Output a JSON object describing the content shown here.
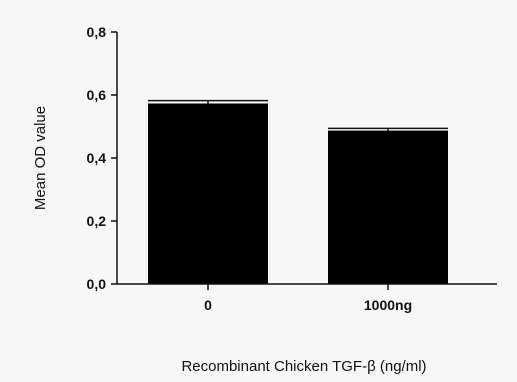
{
  "chart_data": {
    "type": "bar",
    "categories": [
      "0",
      "1000ng"
    ],
    "values": [
      0.573,
      0.487
    ],
    "error": [
      0.009,
      0.007
    ],
    "title": "",
    "xlabel": "Recombinant Chicken TGF-β (ng/ml)",
    "ylabel": "Mean OD value",
    "ylim": [
      0,
      0.8
    ],
    "yticks": [
      "0.0",
      "0.2",
      "0.4",
      "0.6",
      "0.8"
    ],
    "bar_color": "#000000",
    "grid": false,
    "legend": "none"
  }
}
